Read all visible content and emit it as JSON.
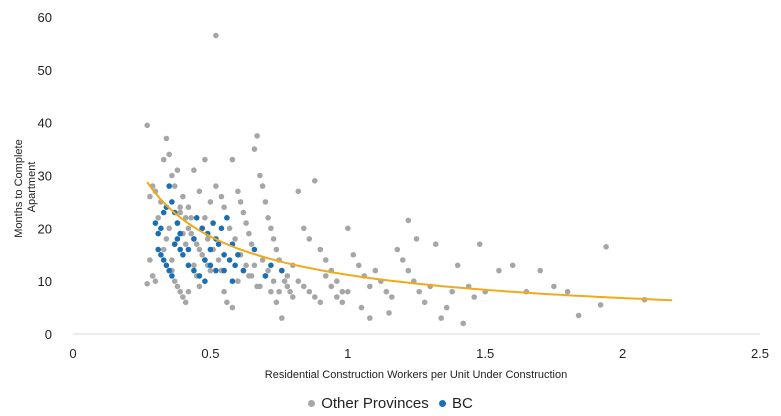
{
  "chart_data": {
    "type": "scatter",
    "title": "",
    "xlabel": "Residential Construction Workers per Unit Under Construction",
    "ylabel_lines": [
      "Months to Complete",
      "Apartment"
    ],
    "xlim": [
      0,
      2.5
    ],
    "ylim": [
      0,
      60
    ],
    "x_ticks": [
      "0",
      "0.5",
      "1",
      "1.5",
      "2",
      "2.5"
    ],
    "y_ticks": [
      "0",
      "10",
      "20",
      "30",
      "40",
      "50",
      "60"
    ],
    "grid": false,
    "legend_position": "bottom",
    "series": [
      {
        "name": "Other Provinces",
        "color": "#a6a6a6",
        "points": [
          [
            0.27,
            39.5
          ],
          [
            0.28,
            26
          ],
          [
            0.29,
            28
          ],
          [
            0.3,
            27
          ],
          [
            0.31,
            22
          ],
          [
            0.28,
            14
          ],
          [
            0.29,
            11
          ],
          [
            0.3,
            10
          ],
          [
            0.27,
            9.5
          ],
          [
            0.32,
            25
          ],
          [
            0.33,
            33
          ],
          [
            0.34,
            37
          ],
          [
            0.35,
            34
          ],
          [
            0.36,
            30
          ],
          [
            0.37,
            28
          ],
          [
            0.38,
            31
          ],
          [
            0.39,
            24
          ],
          [
            0.4,
            26
          ],
          [
            0.41,
            22
          ],
          [
            0.42,
            20
          ],
          [
            0.43,
            19
          ],
          [
            0.44,
            18
          ],
          [
            0.45,
            17
          ],
          [
            0.46,
            16
          ],
          [
            0.47,
            15
          ],
          [
            0.48,
            14
          ],
          [
            0.49,
            13
          ],
          [
            0.5,
            12
          ],
          [
            0.36,
            12
          ],
          [
            0.37,
            10
          ],
          [
            0.38,
            9
          ],
          [
            0.39,
            8
          ],
          [
            0.4,
            7
          ],
          [
            0.41,
            6
          ],
          [
            0.42,
            8
          ],
          [
            0.44,
            31
          ],
          [
            0.46,
            27
          ],
          [
            0.48,
            33
          ],
          [
            0.5,
            25
          ],
          [
            0.52,
            56.5
          ],
          [
            0.52,
            28
          ],
          [
            0.54,
            26
          ],
          [
            0.55,
            24
          ],
          [
            0.56,
            22
          ],
          [
            0.58,
            33
          ],
          [
            0.6,
            27
          ],
          [
            0.61,
            25
          ],
          [
            0.62,
            23
          ],
          [
            0.63,
            21
          ],
          [
            0.64,
            19
          ],
          [
            0.65,
            17
          ],
          [
            0.66,
            35
          ],
          [
            0.67,
            37.5
          ],
          [
            0.68,
            30
          ],
          [
            0.69,
            28
          ],
          [
            0.7,
            25
          ],
          [
            0.71,
            22
          ],
          [
            0.72,
            20
          ],
          [
            0.73,
            18
          ],
          [
            0.74,
            16
          ],
          [
            0.75,
            14
          ],
          [
            0.76,
            12
          ],
          [
            0.77,
            10
          ],
          [
            0.78,
            9
          ],
          [
            0.79,
            8
          ],
          [
            0.8,
            7
          ],
          [
            0.55,
            8
          ],
          [
            0.56,
            6
          ],
          [
            0.58,
            5
          ],
          [
            0.6,
            10
          ],
          [
            0.62,
            12
          ],
          [
            0.64,
            11
          ],
          [
            0.66,
            13
          ],
          [
            0.68,
            9
          ],
          [
            0.7,
            11
          ],
          [
            0.72,
            8
          ],
          [
            0.74,
            6
          ],
          [
            0.76,
            3
          ],
          [
            0.78,
            11
          ],
          [
            0.8,
            13
          ],
          [
            0.82,
            27
          ],
          [
            0.84,
            20
          ],
          [
            0.86,
            18
          ],
          [
            0.88,
            29
          ],
          [
            0.9,
            16
          ],
          [
            0.92,
            14
          ],
          [
            0.94,
            12
          ],
          [
            0.96,
            10
          ],
          [
            0.98,
            8
          ],
          [
            1.0,
            20
          ],
          [
            0.82,
            10
          ],
          [
            0.84,
            9
          ],
          [
            0.86,
            8
          ],
          [
            0.88,
            7
          ],
          [
            0.9,
            6
          ],
          [
            0.92,
            11
          ],
          [
            0.94,
            9
          ],
          [
            0.96,
            7
          ],
          [
            0.98,
            6
          ],
          [
            1.0,
            8
          ],
          [
            1.02,
            15
          ],
          [
            1.04,
            13
          ],
          [
            1.06,
            11
          ],
          [
            1.08,
            9
          ],
          [
            1.1,
            12
          ],
          [
            1.12,
            10
          ],
          [
            1.14,
            8
          ],
          [
            1.16,
            7
          ],
          [
            1.18,
            16
          ],
          [
            1.2,
            14
          ],
          [
            1.22,
            12
          ],
          [
            1.24,
            10
          ],
          [
            1.26,
            8
          ],
          [
            1.28,
            6
          ],
          [
            1.3,
            9
          ],
          [
            1.32,
            17
          ],
          [
            1.34,
            3
          ],
          [
            1.36,
            5
          ],
          [
            1.38,
            8
          ],
          [
            1.4,
            13
          ],
          [
            1.42,
            2
          ],
          [
            1.44,
            9
          ],
          [
            1.46,
            7
          ],
          [
            1.48,
            17
          ],
          [
            1.5,
            8
          ],
          [
            1.55,
            12
          ],
          [
            1.6,
            13
          ],
          [
            1.65,
            8
          ],
          [
            1.7,
            12
          ],
          [
            1.75,
            9
          ],
          [
            1.8,
            8
          ],
          [
            1.84,
            3.5
          ],
          [
            1.92,
            5.5
          ],
          [
            1.94,
            16.5
          ],
          [
            2.08,
            6.5
          ],
          [
            1.05,
            5
          ],
          [
            1.08,
            3
          ],
          [
            1.15,
            4
          ],
          [
            1.22,
            21.5
          ],
          [
            1.25,
            18
          ],
          [
            0.33,
            16
          ],
          [
            0.34,
            18
          ],
          [
            0.35,
            20
          ],
          [
            0.36,
            14
          ],
          [
            0.37,
            17
          ],
          [
            0.38,
            21
          ],
          [
            0.39,
            23
          ],
          [
            0.4,
            19
          ],
          [
            0.41,
            17
          ],
          [
            0.42,
            24
          ],
          [
            0.43,
            22
          ],
          [
            0.44,
            13
          ],
          [
            0.45,
            11
          ],
          [
            0.46,
            9
          ],
          [
            0.47,
            20
          ],
          [
            0.48,
            22
          ],
          [
            0.49,
            18
          ],
          [
            0.51,
            16
          ],
          [
            0.53,
            14
          ],
          [
            0.54,
            12
          ],
          [
            0.57,
            20
          ],
          [
            0.59,
            18
          ],
          [
            0.61,
            15
          ],
          [
            0.63,
            13
          ],
          [
            0.65,
            11
          ],
          [
            0.67,
            9
          ],
          [
            0.69,
            14
          ],
          [
            0.71,
            12
          ],
          [
            0.73,
            10
          ],
          [
            0.75,
            8
          ]
        ]
      },
      {
        "name": "BC",
        "color": "#1a6fb4",
        "points": [
          [
            0.3,
            21
          ],
          [
            0.31,
            19
          ],
          [
            0.32,
            20
          ],
          [
            0.33,
            23
          ],
          [
            0.34,
            24
          ],
          [
            0.35,
            28
          ],
          [
            0.36,
            25
          ],
          [
            0.37,
            23
          ],
          [
            0.38,
            21
          ],
          [
            0.39,
            19
          ],
          [
            0.31,
            16
          ],
          [
            0.32,
            15
          ],
          [
            0.33,
            14
          ],
          [
            0.34,
            13
          ],
          [
            0.35,
            12
          ],
          [
            0.36,
            11
          ],
          [
            0.37,
            17
          ],
          [
            0.38,
            18
          ],
          [
            0.39,
            16
          ],
          [
            0.4,
            15
          ],
          [
            0.42,
            13
          ],
          [
            0.44,
            12
          ],
          [
            0.46,
            11
          ],
          [
            0.48,
            14
          ],
          [
            0.5,
            16
          ],
          [
            0.52,
            18
          ],
          [
            0.54,
            20
          ],
          [
            0.56,
            22
          ],
          [
            0.58,
            17
          ],
          [
            0.6,
            15
          ],
          [
            0.45,
            22
          ],
          [
            0.47,
            20
          ],
          [
            0.49,
            19
          ],
          [
            0.51,
            21
          ],
          [
            0.53,
            17
          ],
          [
            0.55,
            15
          ],
          [
            0.57,
            14
          ],
          [
            0.59,
            13
          ],
          [
            0.62,
            12
          ],
          [
            0.66,
            16
          ],
          [
            0.7,
            11
          ],
          [
            0.72,
            13
          ],
          [
            0.76,
            12
          ],
          [
            0.42,
            16
          ],
          [
            0.44,
            18
          ],
          [
            0.5,
            13
          ],
          [
            0.55,
            12
          ],
          [
            0.58,
            10
          ],
          [
            0.48,
            10
          ],
          [
            0.52,
            12
          ]
        ]
      }
    ],
    "trendline": {
      "type": "power",
      "color": "#f2a91c",
      "x_range": [
        0.27,
        2.18
      ],
      "a": 11.2,
      "b": -0.72
    }
  }
}
